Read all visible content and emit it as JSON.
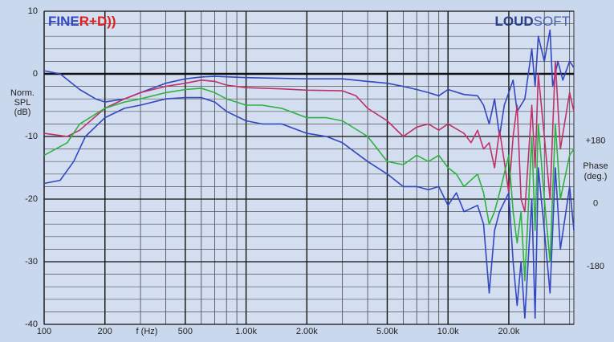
{
  "chart_data": {
    "type": "line",
    "logos": {
      "left": [
        "FINE",
        "R+D))"
      ],
      "right": [
        "LOUD",
        "SOFT"
      ]
    },
    "ylabel": [
      "Norm.",
      "SPL",
      "(dB)"
    ],
    "xlabel": "f (Hz)",
    "y2label": [
      "Phase",
      "(deg.)"
    ],
    "xscale": "log",
    "xlim": [
      100,
      42000
    ],
    "xticks": [
      100,
      200,
      500,
      {
        "value": 1000,
        "label": "1.00k"
      },
      {
        "value": 2000,
        "label": "2.00k"
      },
      {
        "value": 5000,
        "label": "5.00k"
      },
      {
        "value": 10000,
        "label": "10.0k"
      },
      {
        "value": 20000,
        "label": "20.0k"
      }
    ],
    "ylim": [
      -40,
      10
    ],
    "yticks": [
      -40,
      -30,
      -20,
      -10,
      0,
      10
    ],
    "y2lim": [
      -346,
      552
    ],
    "y2ticks": [
      {
        "value": 180,
        "label": "+180"
      },
      0,
      -180
    ],
    "grid": true,
    "series": [
      {
        "color": "#3347c0",
        "x": [
          100,
          120,
          150,
          180,
          200,
          250,
          300,
          400,
          500,
          600,
          700,
          1000,
          2000,
          3000,
          4000,
          5000,
          6000,
          7000,
          8000,
          9000,
          10000,
          12000,
          14000,
          15000,
          16000,
          17000,
          18000,
          19000,
          20000,
          21000,
          22000,
          24000,
          26000,
          27000,
          28000,
          30000,
          32000,
          33000,
          35000,
          37000,
          40000,
          42000
        ],
        "values": [
          0.5,
          0,
          -2.5,
          -4,
          -4.5,
          -4,
          -3,
          -1.5,
          -0.8,
          -0.5,
          -0.4,
          -0.6,
          -0.8,
          -0.8,
          -1.2,
          -1.5,
          -2,
          -2.5,
          -3,
          -3.5,
          -2.5,
          -3.3,
          -3.5,
          -5,
          -8,
          -4,
          -10,
          -5,
          -3,
          -1,
          -6,
          -4,
          4,
          -2,
          6,
          2,
          7,
          -2,
          2,
          -1,
          2,
          1
        ]
      },
      {
        "color": "#c0306a",
        "x": [
          100,
          130,
          150,
          200,
          250,
          300,
          400,
          500,
          600,
          700,
          800,
          1000,
          1500,
          2000,
          3000,
          3500,
          4000,
          5000,
          6000,
          7000,
          8000,
          9000,
          10000,
          12000,
          13000,
          14000,
          15000,
          16000,
          17000,
          18000,
          19000,
          20000,
          21000,
          22000,
          23000,
          24000,
          26000,
          27000,
          28000,
          30000,
          32000,
          34000,
          36000,
          40000,
          42000
        ],
        "values": [
          -9.5,
          -10,
          -9,
          -5.5,
          -4,
          -3,
          -2,
          -1.5,
          -1,
          -1.2,
          -1.8,
          -2.2,
          -2.4,
          -2.6,
          -2.7,
          -3.5,
          -5.5,
          -7.5,
          -10,
          -8.5,
          -8,
          -9,
          -8,
          -9.5,
          -11,
          -9,
          -12,
          -11,
          -15,
          -9,
          -14,
          -19,
          -10,
          -5,
          -20,
          -22,
          -5,
          -15,
          0,
          -10,
          -20,
          2,
          -12,
          -3,
          -6
        ]
      },
      {
        "color": "#30b040",
        "x": [
          100,
          130,
          150,
          200,
          250,
          300,
          400,
          500,
          600,
          700,
          800,
          1000,
          1200,
          1500,
          2000,
          2500,
          3000,
          4000,
          5000,
          6000,
          7000,
          8000,
          9000,
          10000,
          11000,
          12000,
          14000,
          15000,
          16000,
          17000,
          18000,
          20000,
          21000,
          22000,
          23000,
          24000,
          26000,
          27000,
          28000,
          30000,
          32000,
          34000,
          36000,
          40000,
          42000
        ],
        "values": [
          -13,
          -11,
          -8,
          -5.5,
          -4.5,
          -4,
          -3,
          -2.5,
          -2.3,
          -3,
          -4,
          -5,
          -5,
          -5.5,
          -7,
          -7,
          -7.5,
          -10,
          -14,
          -14.5,
          -13,
          -14,
          -13,
          -15,
          -16,
          -18,
          -16,
          -19,
          -24,
          -22,
          -19,
          -13,
          -22,
          -27,
          -22,
          -33,
          -10,
          -25,
          -8,
          -20,
          -30,
          -8,
          -20,
          -13,
          -12
        ]
      },
      {
        "color": "#3347c0",
        "x": [
          100,
          120,
          140,
          160,
          200,
          250,
          300,
          400,
          500,
          600,
          700,
          800,
          1000,
          1200,
          1500,
          2000,
          2500,
          3000,
          4000,
          5000,
          6000,
          7000,
          8000,
          9000,
          10000,
          11000,
          12000,
          14000,
          15000,
          16000,
          17000,
          18000,
          20000,
          21000,
          22000,
          23000,
          24000,
          26000,
          27000,
          28000,
          30000,
          32000,
          34000,
          36000,
          40000,
          42000
        ],
        "values": [
          -17.5,
          -17,
          -14,
          -10,
          -7,
          -5.5,
          -5,
          -4,
          -3.8,
          -3.8,
          -4.5,
          -6,
          -7.5,
          -8,
          -8,
          -9.5,
          -10,
          -11,
          -14,
          -16,
          -18,
          -18,
          -18.5,
          -18,
          -21,
          -19,
          -22,
          -21,
          -24,
          -35,
          -25,
          -22,
          -19,
          -30,
          -37,
          -30,
          -39,
          -20,
          -39,
          -15,
          -25,
          -35,
          -15,
          -28,
          -18,
          -25
        ]
      }
    ]
  }
}
